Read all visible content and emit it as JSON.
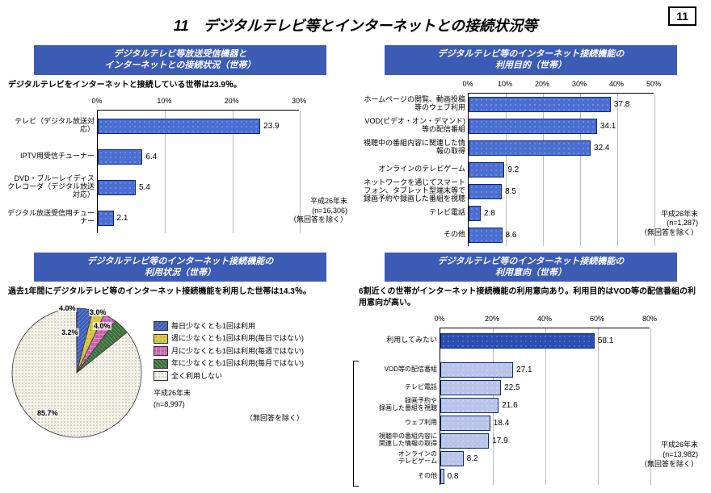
{
  "page_number": "11",
  "main_title": "11　デジタルテレビ等とインターネットとの接続状況等",
  "top_left": {
    "title": "デジタルテレビ等放送受信機器と\nインターネットとの接続状況（世帯）",
    "subtitle": "デジタルテレビをインターネットと接続している世帯は23.9％。",
    "axis_max": 30,
    "axis_step": 10,
    "categories": [
      "テレビ（デジタル放送対応）",
      "IPTV用受信チューナー",
      "DVD・ブルーレイディスクレコーダ（デジタル放送対応）",
      "デジタル放送受信用チューナー"
    ],
    "values": [
      23.9,
      6.4,
      5.4,
      2.1
    ],
    "bar_fill": "#4a6ed1",
    "bar_pattern": "dots",
    "note": "平成26年末\n(n=16,306)\n（無回答を除く）"
  },
  "top_right": {
    "title": "デジタルテレビ等のインターネット接続機能の\n利用目的（世帯）",
    "axis_max": 50,
    "axis_step": 10,
    "categories": [
      "ホームページの閲覧、動画投稿等のウェブ利用",
      "VOD(ビデオ・オン・デマンド)等の配信番組",
      "視聴中の番組内容に関連した情報の取得",
      "オンラインのテレビゲーム",
      "ネットワークを通じてスマートフォン、タブレット型端末等で録画予約や録画した番組を視聴",
      "テレビ電話",
      "その他"
    ],
    "values": [
      37.8,
      34.1,
      32.4,
      9.2,
      8.5,
      2.8,
      8.6
    ],
    "bar_fill": "#4a6ed1",
    "note": "平成26年末\n(n=1,287)\n（無回答を除く）"
  },
  "bottom_left": {
    "title": "デジタルテレビ等のインターネット接続機能の\n利用状況（世帯）",
    "subtitle": "過去1年間にデジタルテレビ等のインターネット接続機能を利用した世帯は14.3％。",
    "slices": [
      {
        "label": "毎日少なくとも1回は利用",
        "value": 4.0,
        "color": "#3b5bb5",
        "pattern": "diag"
      },
      {
        "label": "週に少なくとも1回は利用(毎日ではない)",
        "value": 3.0,
        "color": "#d9c84a",
        "pattern": "dots"
      },
      {
        "label": "月に少なくとも1回は利用(毎週ではない)",
        "value": 3.2,
        "color": "#c55fa8",
        "pattern": "grid"
      },
      {
        "label": "年に少なくとも1回は利用(毎月ではない)",
        "value": 4.0,
        "color": "#3a6b3a",
        "pattern": "diag"
      },
      {
        "label": "全く利用しない",
        "value": 85.7,
        "color": "#f5f2e8",
        "pattern": "fine-dots"
      }
    ],
    "note": "平成26年末\n(n=8,997)",
    "note2": "（無回答を除く）"
  },
  "bottom_right": {
    "title": "デジタルテレビ等のインターネット接続機能の\n利用意向（世帯）",
    "subtitle": "6割近くの世帯がインターネット接続機能の利用意向あり。利用目的はVOD等の配信番組の利用意向が高い。",
    "axis_max": 80,
    "axis_step": 20,
    "primary": {
      "label": "利用してみたい",
      "value": 58.1,
      "color": "#2a4db0"
    },
    "secondary": [
      {
        "label": "VOD等の配信番組",
        "value": 27.1
      },
      {
        "label": "テレビ電話",
        "value": 22.5
      },
      {
        "label": "録画予約や\n録画した番組を視聴",
        "value": 21.6
      },
      {
        "label": "ウェブ利用",
        "value": 18.4
      },
      {
        "label": "視聴中の番組内容に\n関連した情報の取得",
        "value": 17.9
      },
      {
        "label": "オンラインの\nテレビゲーム",
        "value": 8.2
      },
      {
        "label": "その他",
        "value": 0.8
      }
    ],
    "sec_color": "#b8c4e8",
    "note": "平成26年末\n(n=13,982)\n（無回答を除く）"
  }
}
